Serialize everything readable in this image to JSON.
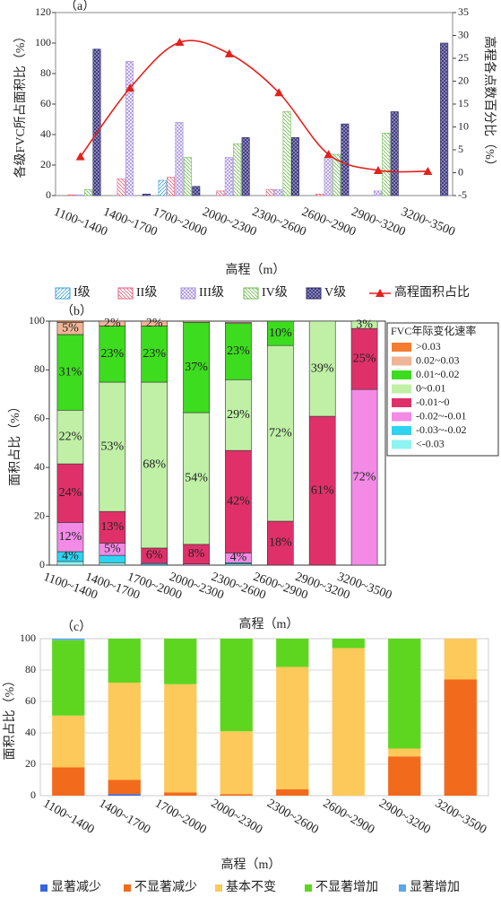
{
  "chart_data": [
    {
      "type": "bar",
      "title": "（a）",
      "y_label": "各级FVC所占面积比（%）",
      "y2_label": "高程各点数百分比（%）",
      "x_label": "高程（m）",
      "categories": [
        "1100~1400",
        "1400~1700",
        "1700~2000",
        "2000~2300",
        "2300~2600",
        "2600~2900",
        "2900~3200",
        "3200~3500"
      ],
      "ylim": [
        0,
        120
      ],
      "yticks": [
        0,
        20,
        40,
        60,
        80,
        100,
        120
      ],
      "y2lim": [
        -5,
        35
      ],
      "y2ticks": [
        -5,
        0,
        5,
        10,
        15,
        20,
        25,
        30,
        35
      ],
      "series": [
        {
          "name": "I级",
          "color": "#3b9fd8",
          "hatch": "/",
          "values": [
            0,
            0,
            10,
            0,
            0,
            0,
            0,
            0
          ]
        },
        {
          "name": "II级",
          "color": "#e0607a",
          "hatch": "\\",
          "values": [
            0.5,
            11,
            12,
            3,
            4,
            1,
            0,
            0
          ]
        },
        {
          "name": "III级",
          "color": "#a78fe0",
          "hatch": "x",
          "values": [
            0.5,
            88,
            48,
            25,
            4,
            25,
            3,
            0
          ]
        },
        {
          "name": "IV级",
          "color": "#6cb84a",
          "hatch": "\\",
          "values": [
            4,
            0,
            25,
            34,
            55,
            27,
            41,
            0
          ]
        },
        {
          "name": "V级",
          "color": "#2e2a66",
          "hatch": "x",
          "values": [
            96,
            1,
            6,
            38,
            38,
            47,
            55,
            100
          ]
        },
        {
          "name": "高程面积占比",
          "color": "#e3211c",
          "axis": "y2",
          "values": [
            3.5,
            18.5,
            28.5,
            26,
            17.5,
            4,
            0.5,
            0.3
          ]
        }
      ]
    },
    {
      "type": "stacked_bar",
      "title": "（b）",
      "y_label": "面积占比（%）",
      "x_label": "高程（m）",
      "legend_title": "FVC年际变化速率",
      "categories": [
        "1100~1400",
        "1400~1700",
        "1700~2000",
        "2000~2300",
        "2300~2600",
        "2600~2900",
        "2900~3200",
        "3200~3500"
      ],
      "ylim": [
        0,
        100
      ],
      "yticks": [
        0,
        20,
        40,
        60,
        80,
        100
      ],
      "series": [
        {
          "name": "<-0.03",
          "color": "#8ff3f0",
          "values": [
            1.5,
            1,
            0,
            0,
            0.5,
            0,
            0,
            0
          ],
          "value_labels": [
            null,
            null,
            null,
            null,
            null,
            null,
            null,
            null
          ]
        },
        {
          "name": "-0.03~-0.02",
          "color": "#2fd3f2",
          "values": [
            4,
            3,
            0.5,
            0,
            0.5,
            0,
            0,
            0
          ],
          "value_labels": [
            "4%",
            null,
            null,
            null,
            null,
            null,
            null,
            null
          ]
        },
        {
          "name": "-0.02~-0.01",
          "color": "#f28ae6",
          "values": [
            12,
            5,
            0.5,
            0.5,
            4,
            0,
            0,
            72
          ],
          "value_labels": [
            "12%",
            "5%",
            null,
            null,
            "4%",
            null,
            null,
            "72%"
          ]
        },
        {
          "name": "-0.01~0",
          "color": "#e0306a",
          "values": [
            24,
            13,
            6,
            8,
            42,
            18,
            61,
            25
          ],
          "value_labels": [
            "24%",
            "13%",
            "6%",
            "8%",
            "42%",
            "18%",
            "61%",
            "25%"
          ]
        },
        {
          "name": "0~0.01",
          "color": "#bff0a6",
          "values": [
            22,
            53,
            68,
            54,
            29,
            72,
            39,
            3
          ],
          "value_labels": [
            "22%",
            "53%",
            "68%",
            "54%",
            "29%",
            "72%",
            "39%",
            "3%"
          ]
        },
        {
          "name": "0.01~0.02",
          "color": "#3ddc1f",
          "values": [
            31,
            23,
            23,
            37,
            23,
            10,
            0,
            0
          ],
          "value_labels": [
            "31%",
            "23%",
            "23%",
            "37%",
            "23%",
            "10%",
            null,
            null
          ]
        },
        {
          "name": "0.02~0.03",
          "color": "#f0b496",
          "values": [
            5,
            2,
            2,
            0.5,
            0.5,
            0,
            0,
            0
          ],
          "value_labels": [
            "5%",
            "2%",
            "2%",
            null,
            null,
            null,
            null,
            null
          ]
        },
        {
          "name": ">0.03",
          "color": "#f47c30",
          "values": [
            0.5,
            0,
            0,
            0,
            0,
            0,
            0,
            0
          ],
          "value_labels": [
            null,
            null,
            null,
            null,
            null,
            null,
            null,
            null
          ]
        }
      ]
    },
    {
      "type": "stacked_bar",
      "title": "（c）",
      "y_label": "面积占比（%）",
      "x_label": "高程（m）",
      "categories": [
        "1100~1400",
        "1400~1700",
        "1700~2000",
        "2000~2300",
        "2300~2600",
        "2600~2900",
        "2900~3200",
        "3200~3500"
      ],
      "ylim": [
        0,
        100
      ],
      "yticks": [
        0,
        20,
        40,
        60,
        80,
        100
      ],
      "grid": true,
      "series": [
        {
          "name": "显著减少",
          "color": "#3566e0",
          "values": [
            0,
            1,
            0,
            0,
            0,
            0,
            0,
            0
          ]
        },
        {
          "name": "不显著减少",
          "color": "#f26a1b",
          "values": [
            18,
            9,
            2,
            1,
            4,
            0,
            25,
            74
          ]
        },
        {
          "name": "基本不变",
          "color": "#fdc95a",
          "values": [
            33,
            62,
            69,
            40,
            78,
            94,
            5,
            26
          ]
        },
        {
          "name": "不显著增加",
          "color": "#5ed620",
          "values": [
            48,
            28,
            29,
            59,
            18,
            6,
            70,
            0
          ]
        },
        {
          "name": "显著增加",
          "color": "#5aa8e8",
          "values": [
            1,
            0,
            0,
            0,
            0,
            0,
            0,
            0
          ]
        }
      ]
    }
  ]
}
